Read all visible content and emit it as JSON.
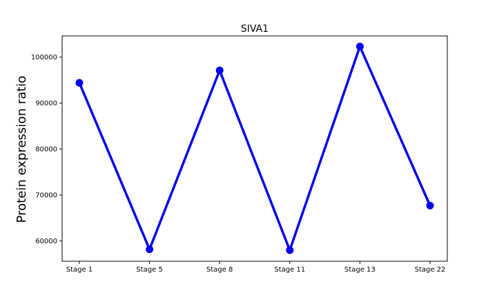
{
  "chart_data": {
    "type": "line",
    "title": "SIVA1",
    "xlabel": "",
    "ylabel": "Protein expression ratio",
    "categories": [
      "Stage 1",
      "Stage 5",
      "Stage 8",
      "Stage 11",
      "Stage 13",
      "Stage 22"
    ],
    "series": [
      {
        "values": [
          94400,
          58200,
          97100,
          58000,
          102300,
          67700
        ],
        "color": "#0000ee",
        "marker": "circle"
      }
    ],
    "ylim": [
      55600,
      104600
    ],
    "yticks": [
      60000,
      70000,
      80000,
      90000,
      100000
    ],
    "ytick_labels": [
      "60000",
      "70000",
      "80000",
      "90000",
      "100000"
    ],
    "grid": false,
    "legend": false
  }
}
